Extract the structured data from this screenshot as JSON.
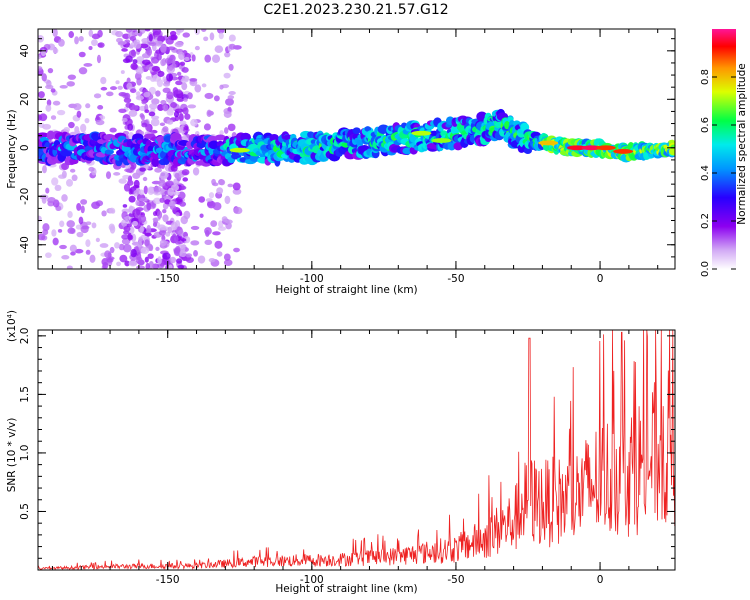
{
  "title": "C2E1.2023.230.21.57.G12",
  "chart_data": [
    {
      "type": "heatmap",
      "xlabel": "Height of straight line (km)",
      "ylabel": "Frequency (Hz)",
      "xlim": [
        -195,
        26
      ],
      "ylim": [
        -50,
        49
      ],
      "xticks": [
        -150,
        -100,
        -50,
        0
      ],
      "yticks": [
        -40,
        -20,
        0,
        20,
        40
      ],
      "colorbar": {
        "label": "Normalized spectral amplitude",
        "range": [
          0.0,
          1.0
        ],
        "ticks": [
          0.0,
          0.2,
          0.4,
          0.6,
          0.8
        ],
        "colormap": [
          "#ffffff",
          "#cc99ee",
          "#8800ee",
          "#2200ff",
          "#0099ff",
          "#00eeee",
          "#00ff44",
          "#ddff00",
          "#ff9900",
          "#ff0000",
          "#ff1493"
        ]
      },
      "ridge": [
        {
          "x": -195,
          "y": 0
        },
        {
          "x": -130,
          "y": -1
        },
        {
          "x": -100,
          "y": 0
        },
        {
          "x": -75,
          "y": 3
        },
        {
          "x": -50,
          "y": 6
        },
        {
          "x": -35,
          "y": 9
        },
        {
          "x": -30,
          "y": 6
        },
        {
          "x": -20,
          "y": 2
        },
        {
          "x": -10,
          "y": 0
        },
        {
          "x": 0,
          "y": 0
        },
        {
          "x": 8,
          "y": -2
        },
        {
          "x": 26,
          "y": 0
        }
      ]
    },
    {
      "type": "line",
      "xlabel": "Height of straight line (km)",
      "ylabel": "SNR (10 * v/v)",
      "yscale_label": "(x10⁴)",
      "xlim": [
        -195,
        26
      ],
      "ylim": [
        0,
        2.05
      ],
      "xticks": [
        -150,
        -100,
        -50,
        0
      ],
      "yticks": [
        0.5,
        1.0,
        1.5,
        2.0
      ],
      "color": "#ee2222",
      "envelope": [
        {
          "x": -195,
          "y": 0.02
        },
        {
          "x": -170,
          "y": 0.05
        },
        {
          "x": -140,
          "y": 0.06
        },
        {
          "x": -120,
          "y": 0.12
        },
        {
          "x": -90,
          "y": 0.15
        },
        {
          "x": -70,
          "y": 0.2
        },
        {
          "x": -50,
          "y": 0.3
        },
        {
          "x": -40,
          "y": 0.45
        },
        {
          "x": -30,
          "y": 0.7
        },
        {
          "x": -25,
          "y": 1.0
        },
        {
          "x": -20,
          "y": 0.95
        },
        {
          "x": -10,
          "y": 1.0
        },
        {
          "x": 0,
          "y": 1.3
        },
        {
          "x": 10,
          "y": 1.4
        },
        {
          "x": 20,
          "y": 1.65
        },
        {
          "x": 26,
          "y": 1.75
        }
      ]
    }
  ]
}
